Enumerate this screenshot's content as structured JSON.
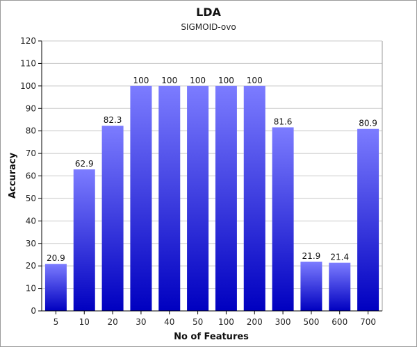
{
  "chart_data": {
    "type": "bar",
    "title": "LDA",
    "subtitle": "SIGMOID-ovo",
    "xlabel": "No of Features",
    "ylabel": "Accuracy",
    "categories": [
      "5",
      "10",
      "20",
      "30",
      "40",
      "50",
      "100",
      "200",
      "300",
      "500",
      "600",
      "700"
    ],
    "values": [
      20.9,
      62.9,
      82.3,
      100,
      100,
      100,
      100,
      100,
      81.6,
      21.9,
      21.4,
      80.9
    ],
    "data_labels": [
      "20.9",
      "62.9",
      "82.3",
      "100",
      "100",
      "100",
      "100",
      "100",
      "81.6",
      "21.9",
      "21.4",
      "80.9"
    ],
    "ylim": [
      0,
      120
    ],
    "yticks": [
      0,
      10,
      20,
      30,
      40,
      50,
      60,
      70,
      80,
      90,
      100,
      110,
      120
    ],
    "grid": true,
    "legend": "none",
    "colors": {
      "bar_top": "#7c7cff",
      "bar_bottom": "#0000c0",
      "grid": "#c8c8c8",
      "axis": "#000000"
    }
  }
}
